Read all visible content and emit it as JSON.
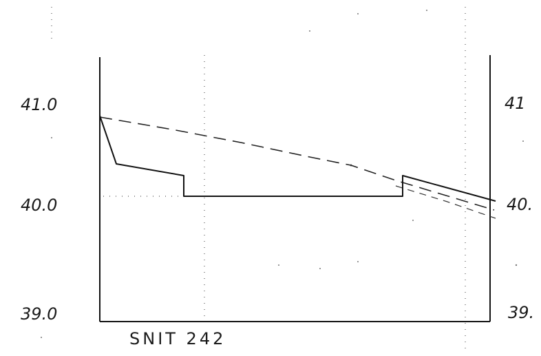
{
  "section_label": "SNIT 242",
  "left_axis": {
    "labels": [
      "41.0",
      "40.0",
      "39.0"
    ]
  },
  "right_axis": {
    "labels": [
      "41",
      "40.",
      "39."
    ]
  }
}
